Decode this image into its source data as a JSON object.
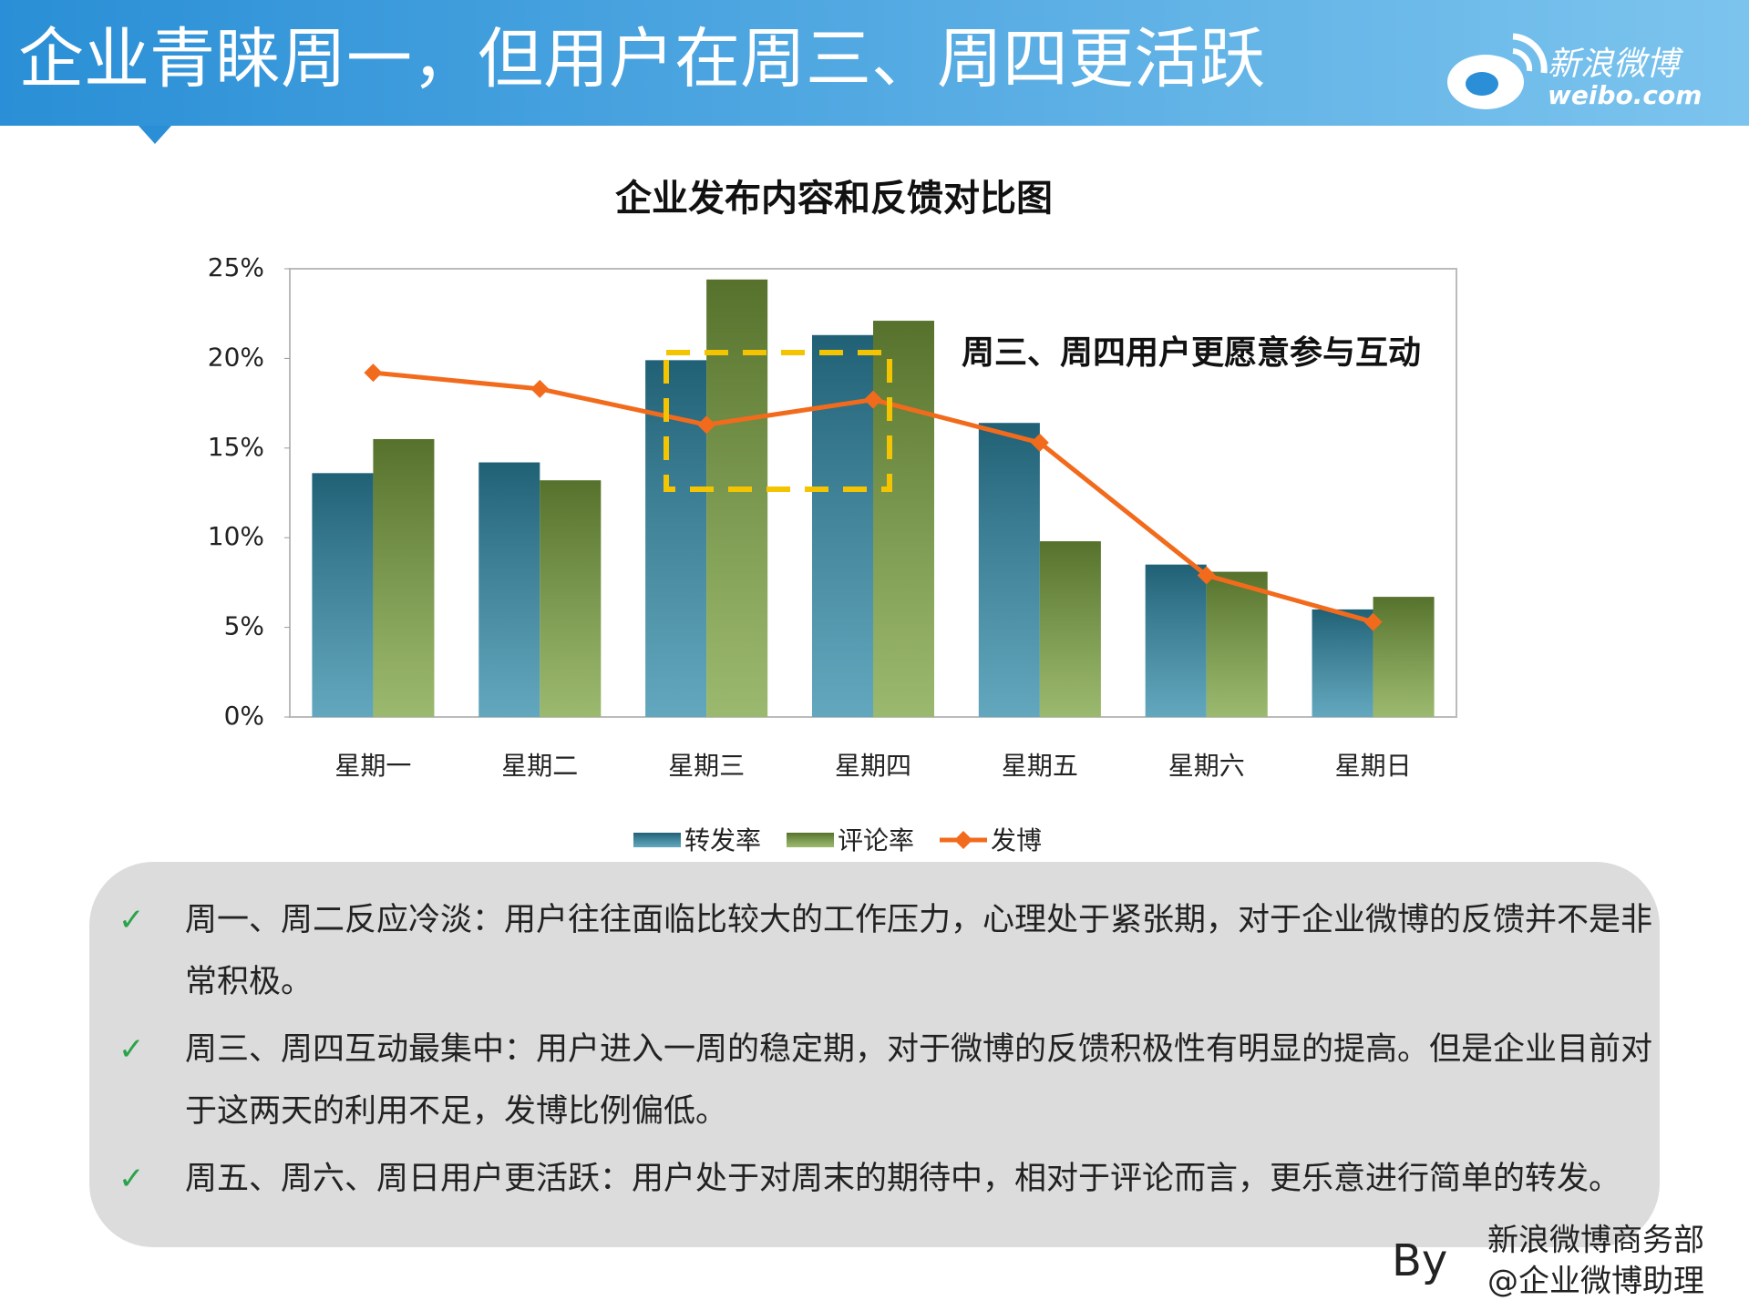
{
  "header": {
    "title": "企业青睐周一，但用户在周三、周四更活跃",
    "logo_name": "新浪微博",
    "logo_url": "weibo.com"
  },
  "chart_data": {
    "type": "bar",
    "title": "企业发布内容和反馈对比图",
    "categories": [
      "星期一",
      "星期二",
      "星期三",
      "星期四",
      "星期五",
      "星期六",
      "星期日"
    ],
    "series": [
      {
        "name": "转发率",
        "color": "#2e8aa8",
        "values": [
          13.6,
          14.2,
          19.9,
          21.3,
          16.4,
          8.5,
          6.0
        ]
      },
      {
        "name": "评论率",
        "color": "#7aa23e",
        "values": [
          15.5,
          13.2,
          24.4,
          22.1,
          9.8,
          8.1,
          6.7
        ]
      },
      {
        "name": "发博",
        "color": "#f26b1d",
        "type": "line",
        "values": [
          19.2,
          18.3,
          16.3,
          17.7,
          15.3,
          7.9,
          5.3
        ]
      }
    ],
    "ylim": [
      0,
      25
    ],
    "yticks": [
      {
        "value": 0,
        "label": "0%"
      },
      {
        "value": 5,
        "label": "5%"
      },
      {
        "value": 10,
        "label": "10%"
      },
      {
        "value": 15,
        "label": "15%"
      },
      {
        "value": 20,
        "label": "20%"
      },
      {
        "value": 25,
        "label": "25%"
      }
    ],
    "annotation": "周三、周四用户更愿意参与互动",
    "legend": "bottom"
  },
  "bullets": [
    "周一、周二反应冷淡：用户往往面临比较大的工作压力，心理处于紧张期，对于企业微博的反馈并不是非常积极。",
    "周三、周四互动最集中：用户进入一周的稳定期，对于微博的反馈积极性有明显的提高。但是企业目前对于这两天的利用不足，发博比例偏低。",
    "周五、周六、周日用户更活跃：用户处于对周末的期待中，相对于评论而言，更乐意进行简单的转发。"
  ],
  "footer": {
    "by": "By",
    "org": "新浪微博商务部",
    "account": "@企业微博助理"
  }
}
